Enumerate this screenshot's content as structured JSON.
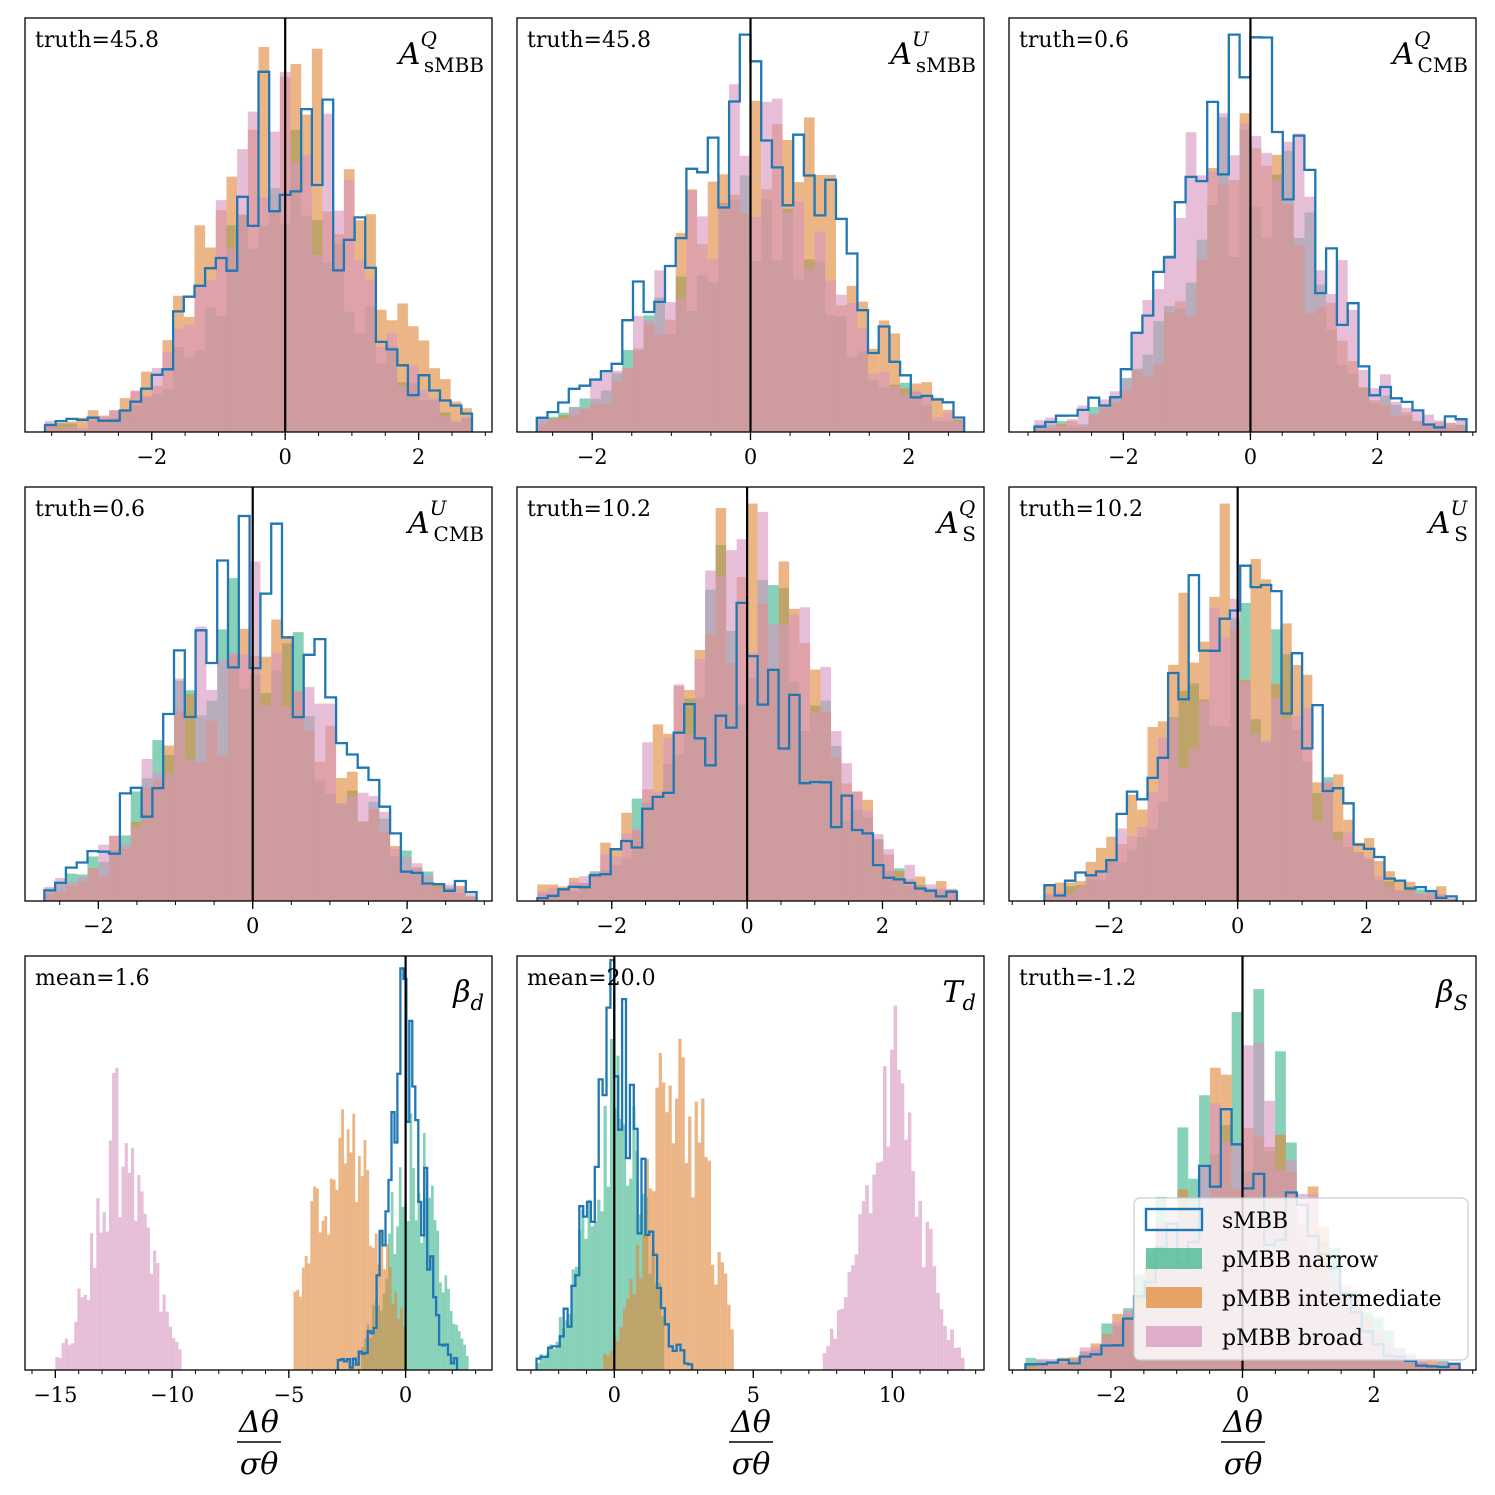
{
  "colors": {
    "sMBB": "#1f77b4",
    "narrow": "#3fb58e",
    "intermediate": "#e0883a",
    "broad": "#d796c0"
  },
  "legend": {
    "entries": [
      "sMBB",
      "pMBB narrow",
      "pMBB intermediate",
      "pMBB broad"
    ]
  },
  "xlabel": {
    "numerator": "Δθ",
    "denominator": "σθ"
  },
  "chart_data": [
    {
      "type": "histogram",
      "param_label": "A_sMBB^Q",
      "param_main": "A",
      "param_sub": "sMBB",
      "param_sup": "Q",
      "annotation": "truth=45.8",
      "xlim": [
        -3.9,
        3.1
      ],
      "xticks": [
        -2,
        0,
        2
      ],
      "xtick_labels": [
        "−2",
        "0",
        "2"
      ],
      "vline": 0,
      "series": [
        {
          "name": "pMBB narrow",
          "mu": 0.0,
          "sigma": 1.0,
          "lo": -3.6,
          "hi": 2.8,
          "bins": 40,
          "peak": 0.73
        },
        {
          "name": "pMBB intermediate",
          "mu": 0.1,
          "sigma": 1.1,
          "lo": -3.6,
          "hi": 2.8,
          "bins": 40,
          "peak": 0.93
        },
        {
          "name": "pMBB broad",
          "mu": 0.0,
          "sigma": 1.0,
          "lo": -3.6,
          "hi": 2.8,
          "bins": 40,
          "peak": 0.87
        },
        {
          "name": "sMBB",
          "mu": 0.0,
          "sigma": 1.0,
          "lo": -3.6,
          "hi": 2.8,
          "bins": 40,
          "peak": 0.87
        }
      ]
    },
    {
      "type": "histogram",
      "param_label": "A_sMBB^U",
      "param_main": "A",
      "param_sub": "sMBB",
      "param_sup": "U",
      "annotation": "truth=45.8",
      "xlim": [
        -2.95,
        2.95
      ],
      "xticks": [
        -2,
        0,
        2
      ],
      "xtick_labels": [
        "−2",
        "0",
        "2"
      ],
      "vline": 0,
      "series": [
        {
          "name": "pMBB narrow",
          "mu": 0.0,
          "sigma": 1.05,
          "lo": -2.7,
          "hi": 2.7,
          "bins": 40,
          "peak": 0.62
        },
        {
          "name": "pMBB intermediate",
          "mu": 0.2,
          "sigma": 1.0,
          "lo": -2.7,
          "hi": 2.7,
          "bins": 40,
          "peak": 0.8
        },
        {
          "name": "pMBB broad",
          "mu": 0.0,
          "sigma": 1.0,
          "lo": -2.7,
          "hi": 2.7,
          "bins": 40,
          "peak": 0.84
        },
        {
          "name": "sMBB",
          "mu": 0.0,
          "sigma": 1.0,
          "lo": -2.7,
          "hi": 2.7,
          "bins": 40,
          "peak": 0.96
        }
      ]
    },
    {
      "type": "histogram",
      "param_label": "A_CMB^Q",
      "param_main": "A",
      "param_sub": "CMB",
      "param_sup": "Q",
      "annotation": "truth=0.6",
      "xlim": [
        -3.8,
        3.55
      ],
      "xticks": [
        -2,
        0,
        2
      ],
      "xtick_labels": [
        "−2",
        "0",
        "2"
      ],
      "vline": 0,
      "series": [
        {
          "name": "pMBB narrow",
          "mu": 0.0,
          "sigma": 1.0,
          "lo": -3.4,
          "hi": 3.4,
          "bins": 40,
          "peak": 0.76
        },
        {
          "name": "pMBB intermediate",
          "mu": 0.0,
          "sigma": 1.0,
          "lo": -3.4,
          "hi": 3.4,
          "bins": 40,
          "peak": 0.77
        },
        {
          "name": "pMBB broad",
          "mu": 0.0,
          "sigma": 1.0,
          "lo": -3.4,
          "hi": 3.4,
          "bins": 40,
          "peak": 0.77
        },
        {
          "name": "sMBB",
          "mu": 0.0,
          "sigma": 1.0,
          "lo": -3.4,
          "hi": 3.4,
          "bins": 40,
          "peak": 0.96
        }
      ]
    },
    {
      "type": "histogram",
      "param_label": "A_CMB^U",
      "param_main": "A",
      "param_sub": "CMB",
      "param_sup": "U",
      "annotation": "truth=0.6",
      "xlim": [
        -2.95,
        3.1
      ],
      "xticks": [
        -2,
        0,
        2
      ],
      "xtick_labels": [
        "−2",
        "0",
        "2"
      ],
      "vline": 0,
      "series": [
        {
          "name": "pMBB narrow",
          "mu": 0.0,
          "sigma": 1.0,
          "lo": -2.7,
          "hi": 2.9,
          "bins": 40,
          "peak": 0.78
        },
        {
          "name": "pMBB intermediate",
          "mu": 0.0,
          "sigma": 1.0,
          "lo": -2.7,
          "hi": 2.9,
          "bins": 40,
          "peak": 0.68
        },
        {
          "name": "pMBB broad",
          "mu": 0.0,
          "sigma": 1.0,
          "lo": -2.7,
          "hi": 2.9,
          "bins": 40,
          "peak": 0.82
        },
        {
          "name": "sMBB",
          "mu": 0.0,
          "sigma": 1.0,
          "lo": -2.7,
          "hi": 2.9,
          "bins": 40,
          "peak": 0.93
        }
      ]
    },
    {
      "type": "histogram",
      "param_label": "A_S^Q",
      "param_main": "A",
      "param_sub": "S",
      "param_sup": "Q",
      "annotation": "truth=10.2",
      "xlim": [
        -3.4,
        3.5
      ],
      "xticks": [
        -2,
        0,
        2
      ],
      "xtick_labels": [
        "−2",
        "0",
        "2"
      ],
      "vline": 0,
      "series": [
        {
          "name": "pMBB narrow",
          "mu": 0.0,
          "sigma": 1.0,
          "lo": -3.1,
          "hi": 3.1,
          "bins": 40,
          "peak": 0.86
        },
        {
          "name": "pMBB intermediate",
          "mu": 0.0,
          "sigma": 1.0,
          "lo": -3.1,
          "hi": 3.1,
          "bins": 40,
          "peak": 0.96
        },
        {
          "name": "pMBB broad",
          "mu": 0.0,
          "sigma": 1.0,
          "lo": -3.1,
          "hi": 3.1,
          "bins": 40,
          "peak": 0.94
        },
        {
          "name": "sMBB",
          "mu": 0.0,
          "sigma": 1.0,
          "lo": -3.1,
          "hi": 3.1,
          "bins": 40,
          "peak": 0.72
        }
      ]
    },
    {
      "type": "histogram",
      "param_label": "A_S^U",
      "param_main": "A",
      "param_sub": "S",
      "param_sup": "U",
      "annotation": "truth=10.2",
      "xlim": [
        -3.55,
        3.7
      ],
      "xticks": [
        -2,
        0,
        2
      ],
      "xtick_labels": [
        "−2",
        "0",
        "2"
      ],
      "vline": 0,
      "series": [
        {
          "name": "pMBB narrow",
          "mu": 0.0,
          "sigma": 1.0,
          "lo": -3.0,
          "hi": 3.4,
          "bins": 40,
          "peak": 0.72
        },
        {
          "name": "pMBB intermediate",
          "mu": 0.0,
          "sigma": 1.0,
          "lo": -3.0,
          "hi": 3.4,
          "bins": 40,
          "peak": 0.96
        },
        {
          "name": "pMBB broad",
          "mu": 0.0,
          "sigma": 1.0,
          "lo": -3.0,
          "hi": 3.4,
          "bins": 40,
          "peak": 0.73
        },
        {
          "name": "sMBB",
          "mu": 0.0,
          "sigma": 1.0,
          "lo": -3.0,
          "hi": 3.4,
          "bins": 40,
          "peak": 0.81
        }
      ]
    },
    {
      "type": "histogram",
      "param_label": "β_d",
      "param_main": "β",
      "param_sub": "d",
      "param_sup": "",
      "annotation": "mean=1.6",
      "xlim": [
        -16.3,
        3.7
      ],
      "xticks": [
        -15,
        -10,
        -5,
        0
      ],
      "xtick_labels": [
        "−15",
        "−10",
        "−5",
        "0"
      ],
      "vline": 0,
      "series": [
        {
          "name": "pMBB narrow",
          "mu": 0.3,
          "sigma": 1.0,
          "lo": -1.9,
          "hi": 2.7,
          "bins": 40,
          "peak": 0.62
        },
        {
          "name": "pMBB intermediate",
          "mu": -2.6,
          "sigma": 1.45,
          "lo": -4.8,
          "hi": 0.0,
          "bins": 40,
          "peak": 0.63
        },
        {
          "name": "pMBB broad",
          "mu": -12.2,
          "sigma": 1.1,
          "lo": -15.0,
          "hi": -9.6,
          "bins": 40,
          "peak": 0.73
        },
        {
          "name": "sMBB",
          "mu": 0.0,
          "sigma": 0.7,
          "lo": -2.9,
          "hi": 2.2,
          "bins": 40,
          "peak": 0.97
        }
      ]
    },
    {
      "type": "histogram",
      "param_label": "T_d",
      "param_main": "T",
      "param_sub": "d",
      "param_sup": "",
      "annotation": "mean=20.0",
      "xlim": [
        -3.5,
        13.3
      ],
      "xticks": [
        0,
        5,
        10
      ],
      "xtick_labels": [
        "0",
        "5",
        "10"
      ],
      "vline": 0,
      "series": [
        {
          "name": "pMBB narrow",
          "mu": 0.0,
          "sigma": 1.0,
          "lo": -2.8,
          "hi": 1.8,
          "bins": 40,
          "peak": 0.8
        },
        {
          "name": "pMBB intermediate",
          "mu": 2.3,
          "sigma": 1.0,
          "lo": -0.4,
          "hi": 4.3,
          "bins": 40,
          "peak": 0.8
        },
        {
          "name": "pMBB broad",
          "mu": 10.0,
          "sigma": 1.0,
          "lo": 7.5,
          "hi": 12.6,
          "bins": 40,
          "peak": 0.88
        },
        {
          "name": "sMBB",
          "mu": 0.0,
          "sigma": 0.9,
          "lo": -2.8,
          "hi": 2.8,
          "bins": 40,
          "peak": 0.99
        }
      ]
    },
    {
      "type": "histogram",
      "param_label": "β_S",
      "param_main": "β",
      "param_sub": "S",
      "param_sup": "",
      "annotation": "truth=-1.2",
      "xlim": [
        -3.55,
        3.55
      ],
      "xticks": [
        -2,
        0,
        2
      ],
      "xtick_labels": [
        "−2",
        "0",
        "2"
      ],
      "vline": 0,
      "series": [
        {
          "name": "pMBB narrow",
          "mu": 0.0,
          "sigma": 1.0,
          "lo": -3.3,
          "hi": 3.3,
          "bins": 40,
          "peak": 0.92
        },
        {
          "name": "pMBB intermediate",
          "mu": 0.0,
          "sigma": 1.0,
          "lo": -3.3,
          "hi": 3.3,
          "bins": 40,
          "peak": 0.73
        },
        {
          "name": "pMBB broad",
          "mu": 0.0,
          "sigma": 1.0,
          "lo": -3.3,
          "hi": 3.3,
          "bins": 40,
          "peak": 0.79
        },
        {
          "name": "sMBB",
          "mu": 0.0,
          "sigma": 1.0,
          "lo": -3.3,
          "hi": 3.3,
          "bins": 40,
          "peak": 0.63
        }
      ]
    }
  ]
}
